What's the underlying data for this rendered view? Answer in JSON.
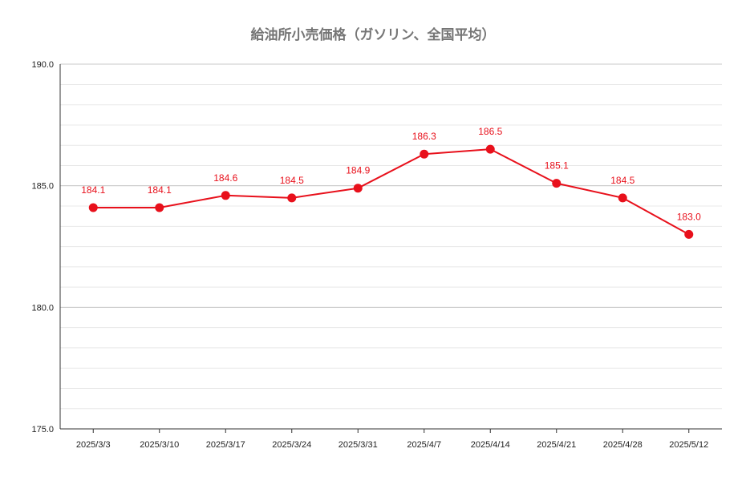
{
  "chart_data": {
    "type": "line",
    "title": "給油所小売価格（ガソリン、全国平均）",
    "categories": [
      "2025/3/3",
      "2025/3/10",
      "2025/3/17",
      "2025/3/24",
      "2025/3/31",
      "2025/4/7",
      "2025/4/14",
      "2025/4/21",
      "2025/4/28",
      "2025/5/12"
    ],
    "series": [
      {
        "values": [
          184.1,
          184.1,
          184.6,
          184.5,
          184.9,
          186.3,
          186.5,
          185.1,
          184.5,
          183.0
        ],
        "labels": [
          "184.1",
          "184.1",
          "184.6",
          "184.5",
          "184.9",
          "186.3",
          "186.5",
          "185.1",
          "184.5",
          "183.0"
        ],
        "color": "#e8101b"
      }
    ],
    "ylim": [
      175.0,
      190.0
    ],
    "yticks": [
      175.0,
      180.0,
      185.0,
      190.0
    ],
    "ytick_labels": [
      "175.0",
      "180.0",
      "185.0",
      "190.0"
    ],
    "minor_grid_step": 0.833,
    "grid": true,
    "legend": "none",
    "colors": {
      "major_grid": "#c8c8c8",
      "minor_grid": "#e8e8e8",
      "axis": "#333333"
    }
  }
}
